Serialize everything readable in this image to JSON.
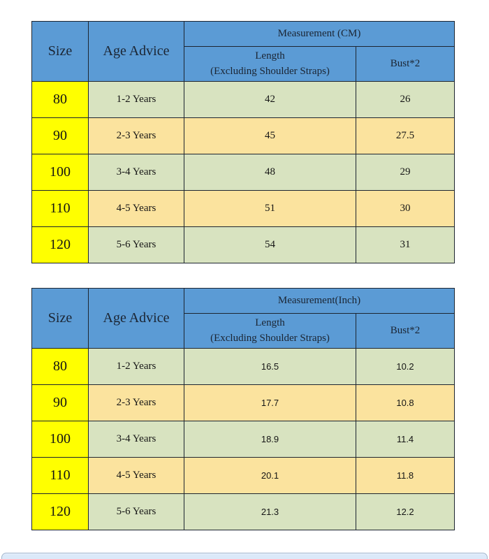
{
  "colors": {
    "header_blue": "#5b9bd5",
    "row_green": "#d8e3c0",
    "row_tan": "#fbe39e",
    "size_yellow": "#ffff00",
    "border": "#1d2530",
    "bottom_bar_fill": "#dbe9f9",
    "bottom_bar_border": "#9fb4cc"
  },
  "chart_data": [
    {
      "type": "table",
      "title": "Measurement (CM)",
      "columns": [
        "Size",
        "Age Advice",
        "Length (Excluding Shoulder Straps)",
        "Bust*2"
      ],
      "header": {
        "size": "Size",
        "age": "Age Advice",
        "measurement": "Measurement (CM)",
        "length_line1": "Length",
        "length_line2": "(Excluding Shoulder Straps)",
        "bust": "Bust*2"
      },
      "rows": [
        {
          "size": "80",
          "age": "1-2 Years",
          "length": "42",
          "bust": "26"
        },
        {
          "size": "90",
          "age": "2-3 Years",
          "length": "45",
          "bust": "27.5"
        },
        {
          "size": "100",
          "age": "3-4 Years",
          "length": "48",
          "bust": "29"
        },
        {
          "size": "110",
          "age": "4-5 Years",
          "length": "51",
          "bust": "30"
        },
        {
          "size": "120",
          "age": "5-6 Years",
          "length": "54",
          "bust": "31"
        }
      ]
    },
    {
      "type": "table",
      "title": "Measurement(Inch)",
      "columns": [
        "Size",
        "Age Advice",
        "Length (Excluding Shoulder Straps)",
        "Bust*2"
      ],
      "header": {
        "size": "Size",
        "age": "Age Advice",
        "measurement": "Measurement(Inch)",
        "length_line1": "Length",
        "length_line2": "(Excluding Shoulder Straps)",
        "bust": "Bust*2"
      },
      "rows": [
        {
          "size": "80",
          "age": "1-2 Years",
          "length": "16.5",
          "bust": "10.2"
        },
        {
          "size": "90",
          "age": "2-3 Years",
          "length": "17.7",
          "bust": "10.8"
        },
        {
          "size": "100",
          "age": "3-4 Years",
          "length": "18.9",
          "bust": "11.4"
        },
        {
          "size": "110",
          "age": "4-5 Years",
          "length": "20.1",
          "bust": "11.8"
        },
        {
          "size": "120",
          "age": "5-6 Years",
          "length": "21.3",
          "bust": "12.2"
        }
      ]
    }
  ]
}
